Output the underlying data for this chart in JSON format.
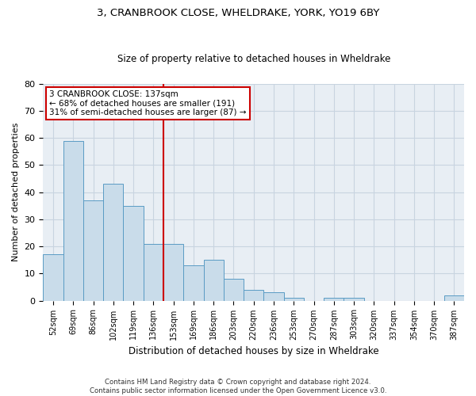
{
  "title1": "3, CRANBROOK CLOSE, WHELDRAKE, YORK, YO19 6BY",
  "title2": "Size of property relative to detached houses in Wheldrake",
  "xlabel": "Distribution of detached houses by size in Wheldrake",
  "ylabel": "Number of detached properties",
  "bar_labels": [
    "52sqm",
    "69sqm",
    "86sqm",
    "102sqm",
    "119sqm",
    "136sqm",
    "153sqm",
    "169sqm",
    "186sqm",
    "203sqm",
    "220sqm",
    "236sqm",
    "253sqm",
    "270sqm",
    "287sqm",
    "303sqm",
    "320sqm",
    "337sqm",
    "354sqm",
    "370sqm",
    "387sqm"
  ],
  "bar_values": [
    17,
    59,
    37,
    43,
    35,
    21,
    21,
    13,
    15,
    8,
    4,
    3,
    1,
    0,
    1,
    1,
    0,
    0,
    0,
    0,
    2
  ],
  "bar_color": "#c9dcea",
  "bar_edge_color": "#5a9bc4",
  "vline_x": 5.5,
  "vline_color": "#cc0000",
  "annotation_line1": "3 CRANBROOK CLOSE: 137sqm",
  "annotation_line2": "← 68% of detached houses are smaller (191)",
  "annotation_line3": "31% of semi-detached houses are larger (87) →",
  "annotation_box_color": "#cc0000",
  "annotation_box_facecolor": "white",
  "ylim": [
    0,
    80
  ],
  "yticks": [
    0,
    10,
    20,
    30,
    40,
    50,
    60,
    70,
    80
  ],
  "grid_color": "#c8d4e0",
  "bg_color": "#e8eef4",
  "title1_fontsize": 9.5,
  "title2_fontsize": 8.5,
  "footnote": "Contains HM Land Registry data © Crown copyright and database right 2024.\nContains public sector information licensed under the Open Government Licence v3.0."
}
